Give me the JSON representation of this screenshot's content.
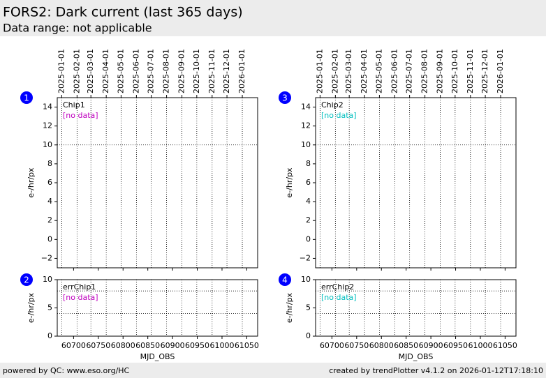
{
  "header": {
    "title": "FORS2: Dark current (last 365 days)",
    "subtitle": "Data range: not applicable"
  },
  "footer": {
    "left": "powered by QC: www.eso.org/HC",
    "right": "created by trendPlotter v4.1.2 on 2026-01-12T17:18:10"
  },
  "chart_data": [
    {
      "type": "line",
      "badge": "1",
      "label": "Chip1",
      "annotation": "[no data]",
      "annotation_color": "#bf00bf",
      "ylabel": "e-/hr/px",
      "x": [],
      "values": [],
      "xlim": [
        60667,
        61072
      ],
      "ylim": [
        -3,
        15
      ],
      "yticks": [
        {
          "value": -2,
          "label": "−2"
        },
        0,
        2,
        4,
        6,
        8,
        10,
        12,
        14
      ],
      "date_ticks": [
        {
          "value": 60676,
          "label": "2025-01-01"
        },
        {
          "value": 60707,
          "label": "2025-02-01"
        },
        {
          "value": 60735,
          "label": "2025-03-01"
        },
        {
          "value": 60766,
          "label": "2025-04-01"
        },
        {
          "value": 60796,
          "label": "2025-05-01"
        },
        {
          "value": 60827,
          "label": "2025-06-01"
        },
        {
          "value": 60857,
          "label": "2025-07-01"
        },
        {
          "value": 60888,
          "label": "2025-08-01"
        },
        {
          "value": 60919,
          "label": "2025-09-01"
        },
        {
          "value": 60949,
          "label": "2025-10-01"
        },
        {
          "value": 60980,
          "label": "2025-11-01"
        },
        {
          "value": 61010,
          "label": "2025-12-01"
        },
        {
          "value": 61041,
          "label": "2026-01-01"
        }
      ],
      "reference_lines": [
        10
      ]
    },
    {
      "type": "line",
      "badge": "2",
      "label": "errChip1",
      "annotation": "[no data]",
      "annotation_color": "#bf00bf",
      "ylabel": "e-/hr/px",
      "xlabel": "MJD_OBS",
      "x": [],
      "values": [],
      "xlim": [
        60667,
        61072
      ],
      "ylim": [
        0,
        10
      ],
      "yticks": [
        0,
        5,
        10
      ],
      "xticks": [
        60700,
        60750,
        60800,
        60850,
        60900,
        60950,
        61000,
        61050
      ],
      "reference_lines": [
        8,
        4
      ]
    },
    {
      "type": "line",
      "badge": "3",
      "label": "Chip2",
      "annotation": "[no data]",
      "annotation_color": "#00bfbf",
      "ylabel": "e-/hr/px",
      "x": [],
      "values": [],
      "xlim": [
        60667,
        61072
      ],
      "ylim": [
        -3,
        15
      ],
      "yticks": [
        {
          "value": -2,
          "label": "−2"
        },
        0,
        2,
        4,
        6,
        8,
        10,
        12,
        14
      ],
      "date_ticks": [
        {
          "value": 60676,
          "label": "2025-01-01"
        },
        {
          "value": 60707,
          "label": "2025-02-01"
        },
        {
          "value": 60735,
          "label": "2025-03-01"
        },
        {
          "value": 60766,
          "label": "2025-04-01"
        },
        {
          "value": 60796,
          "label": "2025-05-01"
        },
        {
          "value": 60827,
          "label": "2025-06-01"
        },
        {
          "value": 60857,
          "label": "2025-07-01"
        },
        {
          "value": 60888,
          "label": "2025-08-01"
        },
        {
          "value": 60919,
          "label": "2025-09-01"
        },
        {
          "value": 60949,
          "label": "2025-10-01"
        },
        {
          "value": 60980,
          "label": "2025-11-01"
        },
        {
          "value": 61010,
          "label": "2025-12-01"
        },
        {
          "value": 61041,
          "label": "2026-01-01"
        }
      ],
      "reference_lines": [
        10
      ]
    },
    {
      "type": "line",
      "badge": "4",
      "label": "errChip2",
      "annotation": "[no data]",
      "annotation_color": "#00bfbf",
      "ylabel": "e-/hr/px",
      "xlabel": "MJD_OBS",
      "x": [],
      "values": [],
      "xlim": [
        60667,
        61072
      ],
      "ylim": [
        0,
        10
      ],
      "yticks": [
        0,
        5,
        10
      ],
      "xticks": [
        60700,
        60750,
        60800,
        60850,
        60900,
        60950,
        61000,
        61050
      ],
      "reference_lines": [
        8,
        4
      ]
    }
  ]
}
